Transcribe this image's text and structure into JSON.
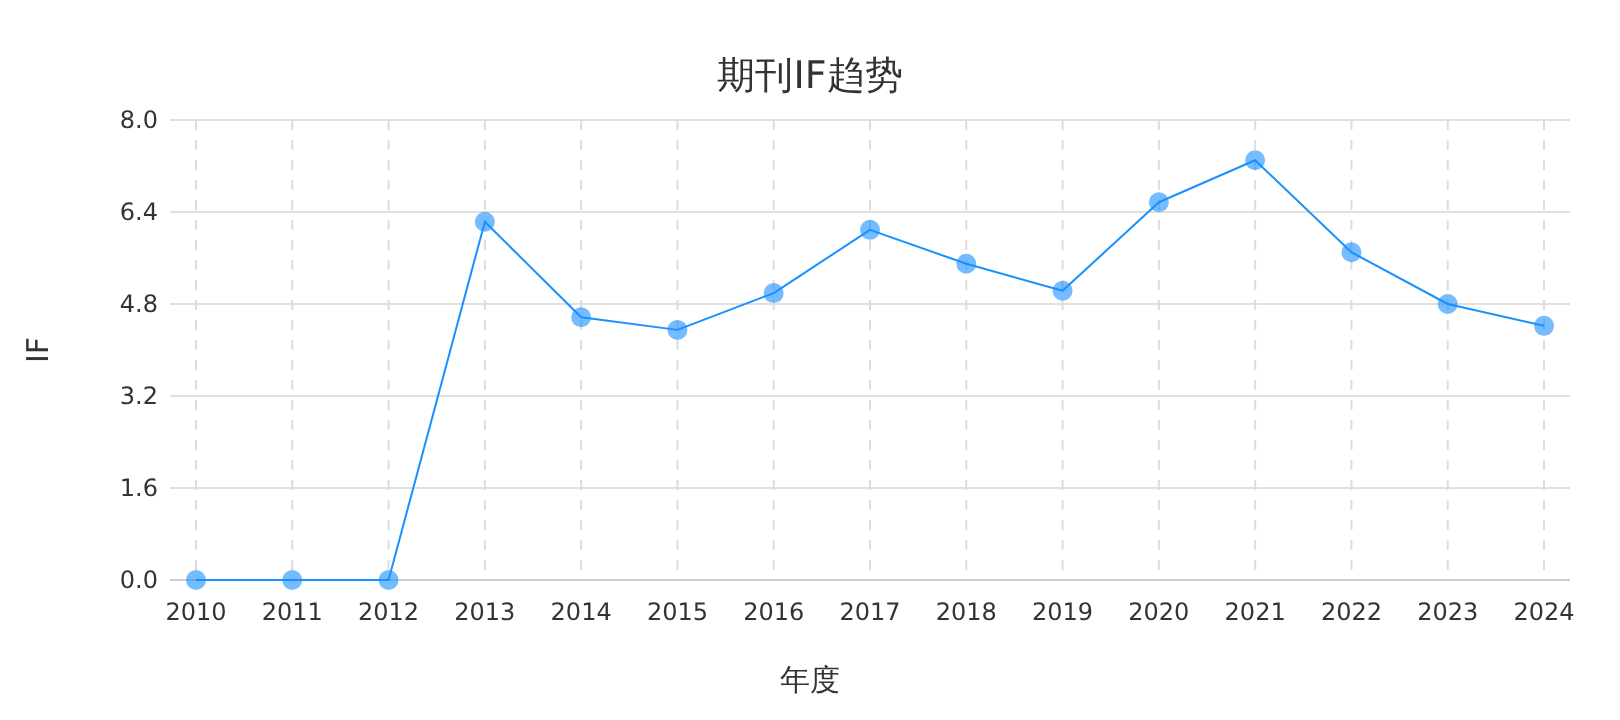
{
  "chart_data": {
    "type": "line",
    "title": "期刊IF趋势",
    "xlabel": "年度",
    "ylabel": "IF",
    "categories": [
      "2010",
      "2011",
      "2012",
      "2013",
      "2014",
      "2015",
      "2016",
      "2017",
      "2018",
      "2019",
      "2020",
      "2021",
      "2022",
      "2023",
      "2024"
    ],
    "series": [
      {
        "color": "#1890ff",
        "values": [
          0,
          0,
          0,
          6.23,
          4.57,
          4.35,
          4.99,
          6.09,
          5.5,
          5.03,
          6.57,
          7.3,
          5.7,
          4.8,
          4.42
        ]
      }
    ],
    "ylim": [
      0,
      8
    ],
    "yticks": [
      {
        "value": 0,
        "label": "0.0"
      },
      {
        "value": 1.6,
        "label": "1.6"
      },
      {
        "value": 3.2,
        "label": "3.2"
      },
      {
        "value": 4.8,
        "label": "4.8"
      },
      {
        "value": 6.4,
        "label": "6.4"
      },
      {
        "value": 8,
        "label": "8.0"
      }
    ],
    "grid": true,
    "marker": "circle",
    "line_style": "solid"
  }
}
